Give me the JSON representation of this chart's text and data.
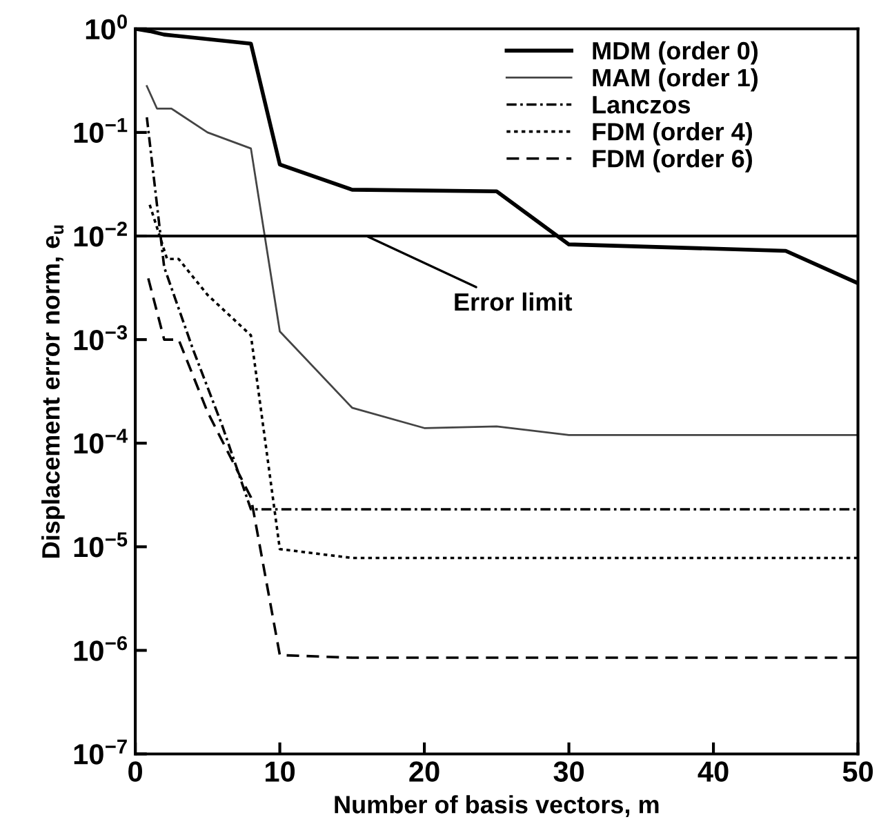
{
  "chart_data": {
    "type": "line",
    "xlabel": "Number of basis vectors, m",
    "ylabel": "Displacement error norm, e$_{u}$",
    "log": "y",
    "xlim": [
      0,
      50
    ],
    "xticks": [
      0,
      10,
      20,
      30,
      40,
      50
    ],
    "ylim": [
      1e-07,
      1
    ],
    "yticks": [
      {
        "value": 1e-07,
        "label": "10$^{−7}$"
      },
      {
        "value": 1e-06,
        "label": "10$^{−6}$"
      },
      {
        "value": 1e-05,
        "label": "10$^{−5}$"
      },
      {
        "value": 0.0001,
        "label": "10$^{−4}$"
      },
      {
        "value": 0.001,
        "label": "10$^{−3}$"
      },
      {
        "value": 0.01,
        "label": "10$^{−2}$"
      },
      {
        "value": 0.1,
        "label": "10$^{−1}$"
      },
      {
        "value": 1,
        "label": "10$^{0}$"
      }
    ],
    "grid": false,
    "legend": "top right",
    "marker": "none",
    "series": [
      {
        "name": "MDM (order 0)",
        "color": "#000000",
        "line_style": "solid",
        "x": [
          0,
          1,
          2,
          8,
          10,
          15,
          25,
          30,
          45,
          50
        ],
        "values": [
          1.0,
          0.95,
          0.88,
          0.72,
          0.049,
          0.028,
          0.027,
          0.0083,
          0.0072,
          0.0035
        ]
      },
      {
        "name": "MAM (order 1)",
        "color": "#444444",
        "line_style": "solid",
        "x": [
          0.8,
          1.5,
          2.5,
          5,
          8,
          10,
          15,
          20,
          25,
          30,
          50
        ],
        "values": [
          0.28,
          0.17,
          0.17,
          0.1,
          0.07,
          0.0012,
          0.00022,
          0.00014,
          0.000145,
          0.00012,
          0.00012
        ]
      },
      {
        "name": "Lanczos",
        "color": "#000000",
        "line_style": "dashdot",
        "x": [
          0.8,
          2,
          4,
          6,
          8,
          50
        ],
        "values": [
          0.14,
          0.005,
          0.0008,
          0.00015,
          2.3e-05,
          2.3e-05
        ]
      },
      {
        "name": "FDM (order 4)",
        "color": "#000000",
        "line_style": "dotted",
        "x": [
          1,
          2.2,
          3,
          5,
          8,
          10,
          15,
          50
        ],
        "values": [
          0.02,
          0.006,
          0.006,
          0.0027,
          0.0011,
          9.5e-06,
          7.8e-06,
          7.8e-06
        ]
      },
      {
        "name": "FDM (order 6)",
        "color": "#000000",
        "line_style": "dashed",
        "x": [
          0.9,
          2,
          3,
          5,
          8,
          10,
          15,
          50
        ],
        "values": [
          0.0039,
          0.001,
          0.001,
          0.0002,
          3e-05,
          9e-07,
          8.5e-07,
          8.5e-07
        ]
      }
    ],
    "ref_lines": [
      {
        "axis": "y",
        "value": 0.01,
        "label": "Error limit",
        "color": "#000000",
        "line_style": "solid"
      }
    ]
  }
}
